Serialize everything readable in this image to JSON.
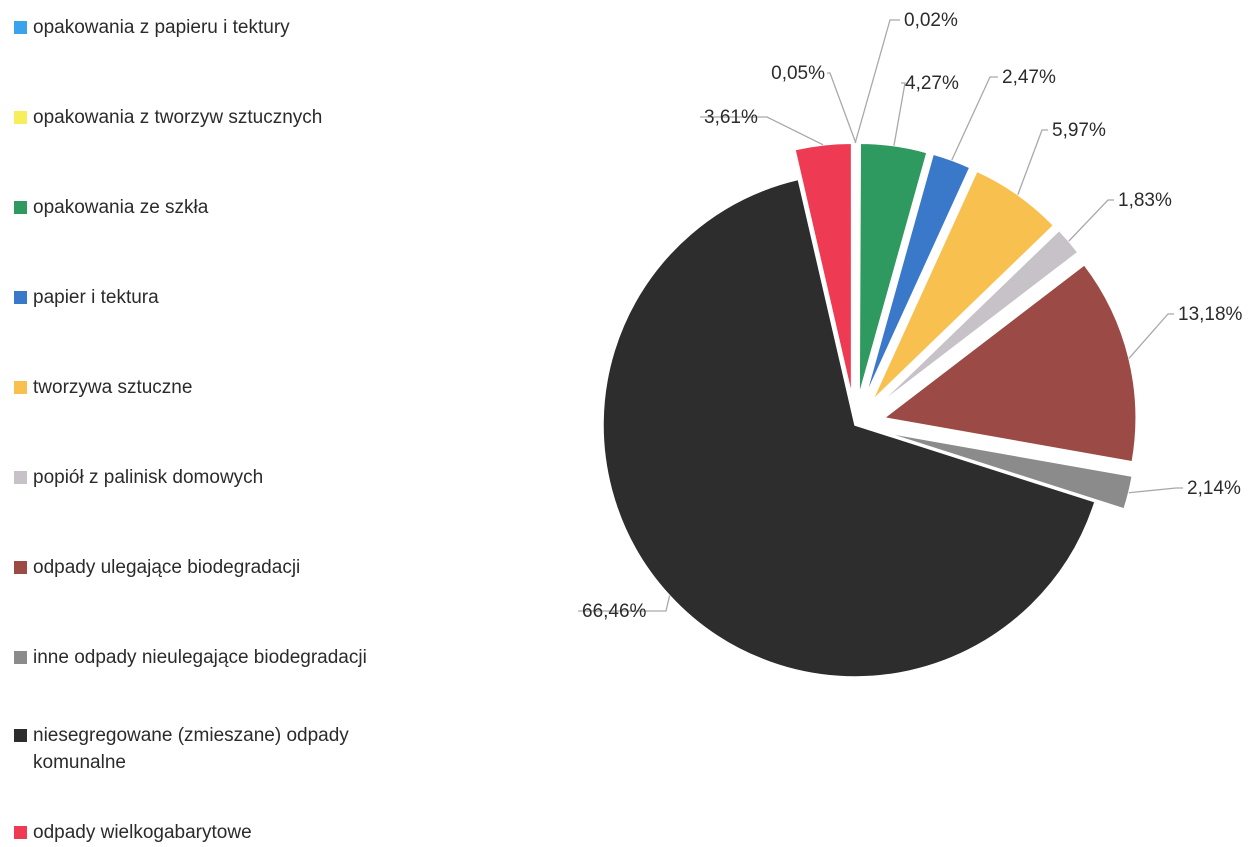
{
  "chart_data": {
    "type": "pie",
    "legend_position": "left",
    "slices": [
      {
        "name": "opakowania z papieru i tektury",
        "value": 0.02,
        "label": "0,02%",
        "color": "#3aa3ec"
      },
      {
        "name": "opakowania z tworzyw sztucznych",
        "value": 0.05,
        "label": "0,05%",
        "color": "#f6ee5a"
      },
      {
        "name": "opakowania ze szkła",
        "value": 4.27,
        "label": "4,27%",
        "color": "#2f9a60"
      },
      {
        "name": "papier i tektura",
        "value": 2.47,
        "label": "2,47%",
        "color": "#3a78c9"
      },
      {
        "name": "tworzywa sztuczne",
        "value": 5.97,
        "label": "5,97%",
        "color": "#f7c04f"
      },
      {
        "name": "popiół z palinisk domowych",
        "value": 1.83,
        "label": "1,83%",
        "color": "#c7c2c8"
      },
      {
        "name": "odpady ulegające biodegradacji",
        "value": 13.18,
        "label": "13,18%",
        "color": "#9b4a45"
      },
      {
        "name": "inne odpady nieulegające biodegradacji",
        "value": 2.14,
        "label": "2,14%",
        "color": "#8c8b8b"
      },
      {
        "name": "niesegregowane (zmieszane) odpady komunalne",
        "value": 66.46,
        "label": "66,46%",
        "color": "#2e2d2e"
      },
      {
        "name": "odpady wielkogabarytowe",
        "value": 3.61,
        "label": "3,61%",
        "color": "#ee3a53"
      }
    ]
  }
}
